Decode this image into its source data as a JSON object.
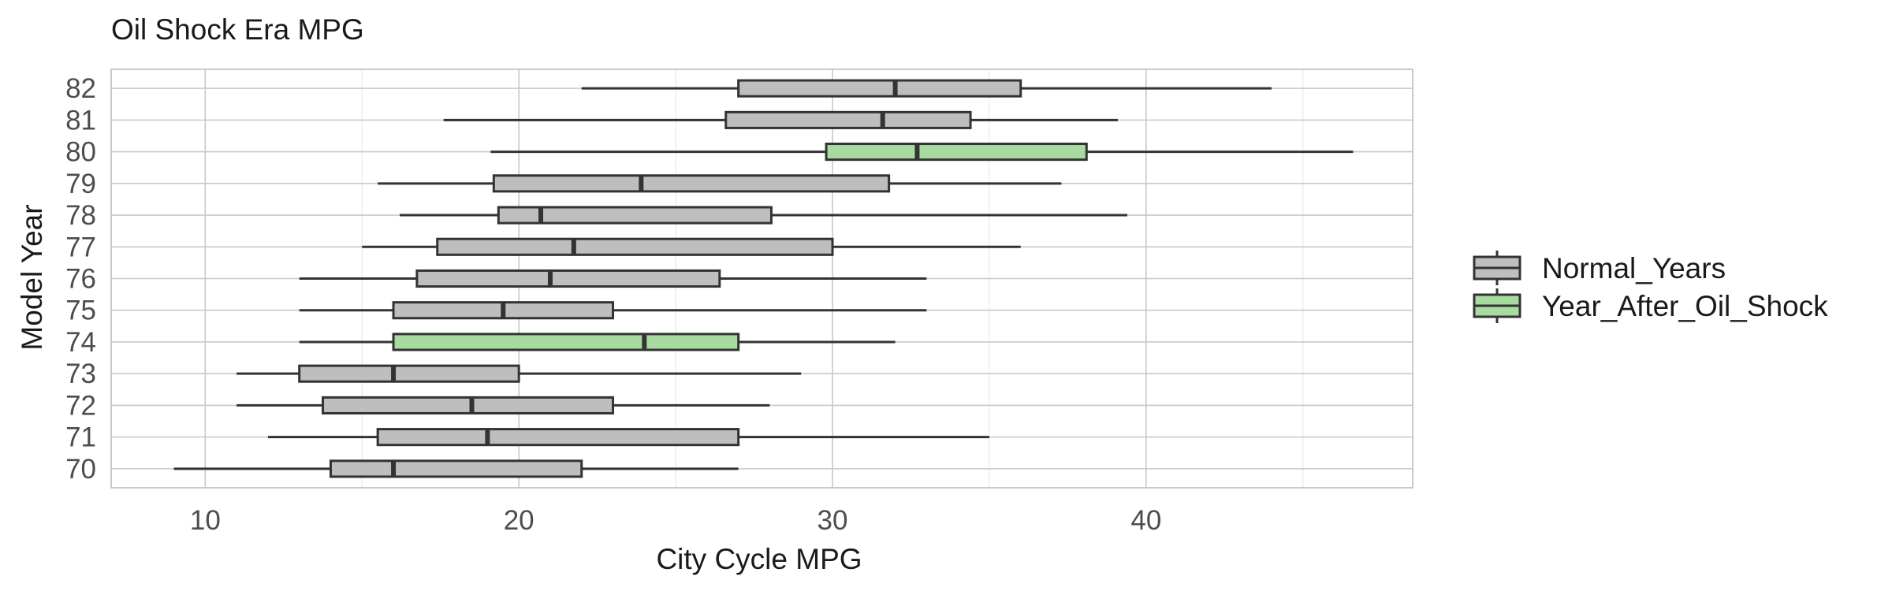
{
  "chart_data": {
    "type": "boxplot",
    "orientation": "horizontal",
    "title": "Oil Shock Era MPG",
    "xlabel": "City Cycle MPG",
    "ylabel": "Model Year",
    "xlim": [
      7,
      48.5
    ],
    "x_ticks": [
      10,
      20,
      30,
      40
    ],
    "categories": [
      "70",
      "71",
      "72",
      "73",
      "74",
      "75",
      "76",
      "77",
      "78",
      "79",
      "80",
      "81",
      "82"
    ],
    "groups": [
      "Normal_Years",
      "Normal_Years",
      "Normal_Years",
      "Normal_Years",
      "Year_After_Oil_Shock",
      "Normal_Years",
      "Normal_Years",
      "Normal_Years",
      "Normal_Years",
      "Normal_Years",
      "Year_After_Oil_Shock",
      "Normal_Years",
      "Normal_Years"
    ],
    "boxes": [
      {
        "min": 9.0,
        "q1": 14.0,
        "median": 16.0,
        "q3": 22.0,
        "max": 27.0
      },
      {
        "min": 12.0,
        "q1": 15.5,
        "median": 19.0,
        "q3": 27.0,
        "max": 35.0
      },
      {
        "min": 11.0,
        "q1": 13.75,
        "median": 18.5,
        "q3": 23.0,
        "max": 28.0
      },
      {
        "min": 11.0,
        "q1": 13.0,
        "median": 16.0,
        "q3": 20.0,
        "max": 29.0
      },
      {
        "min": 13.0,
        "q1": 16.0,
        "median": 24.0,
        "q3": 27.0,
        "max": 32.0
      },
      {
        "min": 13.0,
        "q1": 16.0,
        "median": 19.5,
        "q3": 23.0,
        "max": 33.0
      },
      {
        "min": 13.0,
        "q1": 16.75,
        "median": 21.0,
        "q3": 26.4,
        "max": 33.0
      },
      {
        "min": 15.0,
        "q1": 17.4,
        "median": 21.75,
        "q3": 30.0,
        "max": 36.0
      },
      {
        "min": 16.2,
        "q1": 19.35,
        "median": 20.7,
        "q3": 28.05,
        "max": 39.4
      },
      {
        "min": 15.5,
        "q1": 19.2,
        "median": 23.9,
        "q3": 31.8,
        "max": 37.3
      },
      {
        "min": 19.1,
        "q1": 29.8,
        "median": 32.7,
        "q3": 38.1,
        "max": 46.6
      },
      {
        "min": 17.6,
        "q1": 26.6,
        "median": 31.6,
        "q3": 34.4,
        "max": 39.1
      },
      {
        "min": 22.0,
        "q1": 27.0,
        "median": 32.0,
        "q3": 36.0,
        "max": 44.0
      }
    ],
    "legend": {
      "position": "right",
      "items": [
        {
          "label": "Normal_Years",
          "color": "#bebebe"
        },
        {
          "label": "Year_After_Oil_Shock",
          "color": "#a8dba0"
        }
      ]
    },
    "grid": true,
    "colors": {
      "Normal_Years": "#bebebe",
      "Year_After_Oil_Shock": "#a8dba0",
      "stroke": "#333333",
      "grid": "#c8c8c8",
      "panel_border": "#bdbdbd"
    }
  }
}
